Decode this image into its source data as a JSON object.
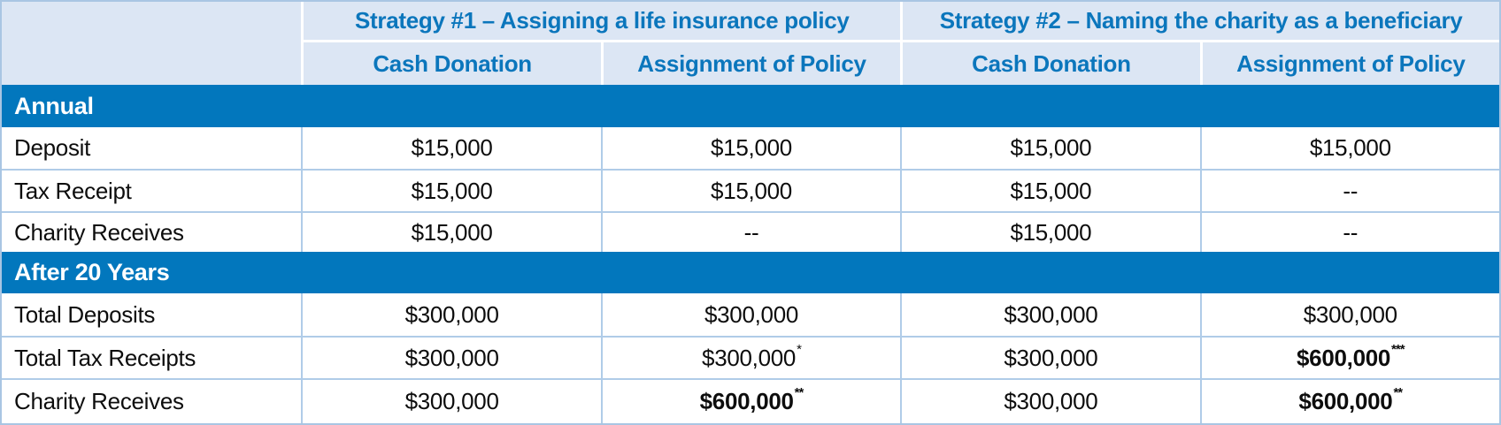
{
  "table": {
    "colors": {
      "section_bar_blue": "#0277bd",
      "header_background": "#dce6f4",
      "header_text_blue": "#0b76bc",
      "grid_border_light_blue": "#b0cce8",
      "header_divider_white": "#ffffff",
      "body_text": "#0d0d0d"
    },
    "corner_label": "",
    "strategy_headers": [
      {
        "label": "Strategy #1 – Assigning a life insurance policy"
      },
      {
        "label": "Strategy #2 – Naming the charity as a beneficiary"
      }
    ],
    "column_headers": [
      "Cash Donation",
      "Assignment of Policy",
      "Cash Donation",
      "Assignment of Policy"
    ],
    "sections": [
      {
        "title": "Annual",
        "rows": [
          {
            "label": "Deposit",
            "cells": [
              {
                "text": "$15,000",
                "sup": ""
              },
              {
                "text": "$15,000",
                "sup": ""
              },
              {
                "text": "$15,000",
                "sup": ""
              },
              {
                "text": "$15,000",
                "sup": ""
              }
            ]
          },
          {
            "label": "Tax Receipt",
            "cells": [
              {
                "text": "$15,000",
                "sup": ""
              },
              {
                "text": "$15,000",
                "sup": ""
              },
              {
                "text": "$15,000",
                "sup": ""
              },
              {
                "text": "--",
                "sup": ""
              }
            ]
          },
          {
            "label": "Charity Receives",
            "cells": [
              {
                "text": "$15,000",
                "sup": ""
              },
              {
                "text": "--",
                "sup": ""
              },
              {
                "text": "$15,000",
                "sup": ""
              },
              {
                "text": "--",
                "sup": ""
              }
            ]
          }
        ]
      },
      {
        "title": "After 20 Years",
        "rows": [
          {
            "label": "Total Deposits",
            "cells": [
              {
                "text": "$300,000",
                "sup": ""
              },
              {
                "text": "$300,000",
                "sup": ""
              },
              {
                "text": "$300,000",
                "sup": ""
              },
              {
                "text": "$300,000",
                "sup": ""
              }
            ]
          },
          {
            "label": "Total Tax Receipts",
            "cells": [
              {
                "text": "$300,000",
                "sup": ""
              },
              {
                "text": "$300,000",
                "sup": "*"
              },
              {
                "text": "$300,000",
                "sup": ""
              },
              {
                "text": "$600,000",
                "sup": "***"
              }
            ]
          },
          {
            "label": "Charity Receives",
            "cells": [
              {
                "text": "$300,000",
                "sup": ""
              },
              {
                "text": "$600,000",
                "sup": "**"
              },
              {
                "text": "$300,000",
                "sup": ""
              },
              {
                "text": "$600,000",
                "sup": "**"
              }
            ]
          }
        ]
      }
    ]
  }
}
